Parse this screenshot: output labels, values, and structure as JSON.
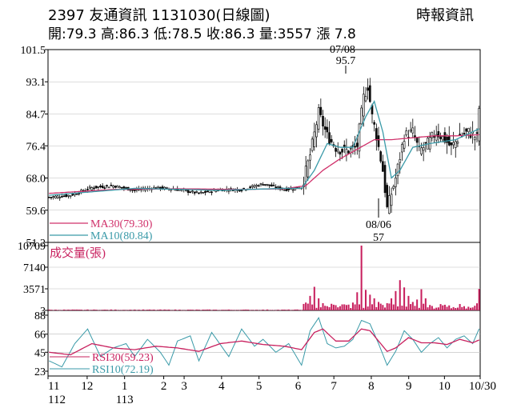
{
  "header": {
    "title": "2397  友通資訊 1131030(日線圖)",
    "quote": "開:79.3 高:86.3 低:78.5 收:86.3 量:3557 漲 7.8",
    "source": "時報資訊"
  },
  "chart_data": [
    {
      "type": "candlestick",
      "name": "price",
      "ylim": [
        51.2,
        101.5
      ],
      "yticks": [
        "101.5",
        "93.1",
        "84.7",
        "76.4",
        "68.0",
        "59.6",
        "51.2"
      ],
      "ytick_values": [
        101.5,
        93.1,
        84.7,
        76.4,
        68.0,
        59.6,
        51.2
      ],
      "annotations": [
        {
          "date": "07/08",
          "value": "95.7"
        },
        {
          "date": "08/06",
          "value": "57"
        }
      ],
      "legend": [
        {
          "label": "MA30(79.30)",
          "color": "#d0306a"
        },
        {
          "label": "MA10(80.84)",
          "color": "#3a9aa8"
        }
      ],
      "close_keypoints": [
        [
          0,
          63.0
        ],
        [
          10,
          63.5
        ],
        [
          20,
          65.5
        ],
        [
          30,
          66.0
        ],
        [
          40,
          64.8
        ],
        [
          50,
          65.5
        ],
        [
          60,
          65.0
        ],
        [
          70,
          64.0
        ],
        [
          80,
          65.0
        ],
        [
          90,
          65.0
        ],
        [
          100,
          66.5
        ],
        [
          110,
          65.0
        ],
        [
          118,
          65.5
        ],
        [
          122,
          74.0
        ],
        [
          126,
          85.0
        ],
        [
          130,
          79.0
        ],
        [
          134,
          76.0
        ],
        [
          138,
          75.0
        ],
        [
          142,
          75.5
        ],
        [
          144,
          76.5
        ],
        [
          147,
          89.0
        ],
        [
          149,
          92.0
        ],
        [
          151,
          84.0
        ],
        [
          153,
          79.0
        ],
        [
          156,
          70.0
        ],
        [
          158,
          60.0
        ],
        [
          162,
          68.0
        ],
        [
          166,
          79.0
        ],
        [
          170,
          80.0
        ],
        [
          173,
          75.0
        ],
        [
          177,
          77.0
        ],
        [
          181,
          80.0
        ],
        [
          185,
          78.0
        ],
        [
          188,
          76.0
        ],
        [
          192,
          79.0
        ],
        [
          196,
          80.0
        ],
        [
          200,
          78.5
        ],
        [
          201,
          86.3
        ]
      ],
      "ma10_keypoints": [
        [
          0,
          63.5
        ],
        [
          40,
          65.3
        ],
        [
          80,
          64.8
        ],
        [
          110,
          65.3
        ],
        [
          118,
          65.3
        ],
        [
          124,
          70.0
        ],
        [
          130,
          77.0
        ],
        [
          136,
          76.0
        ],
        [
          142,
          76.0
        ],
        [
          148,
          84.0
        ],
        [
          152,
          88.0
        ],
        [
          156,
          80.0
        ],
        [
          160,
          68.0
        ],
        [
          164,
          70.0
        ],
        [
          170,
          76.0
        ],
        [
          178,
          77.0
        ],
        [
          190,
          78.0
        ],
        [
          201,
          80.84
        ]
      ],
      "ma30_keypoints": [
        [
          0,
          64.0
        ],
        [
          30,
          65.0
        ],
        [
          60,
          65.2
        ],
        [
          90,
          65.0
        ],
        [
          110,
          65.2
        ],
        [
          120,
          66.0
        ],
        [
          128,
          70.0
        ],
        [
          136,
          73.0
        ],
        [
          144,
          75.5
        ],
        [
          152,
          78.0
        ],
        [
          160,
          78.0
        ],
        [
          170,
          78.5
        ],
        [
          180,
          79.0
        ],
        [
          190,
          79.0
        ],
        [
          201,
          79.3
        ]
      ]
    },
    {
      "type": "bar",
      "name": "volume",
      "title": "成交量(張)",
      "ylim": [
        3,
        10709
      ],
      "yticks": [
        "10709",
        "7140",
        "3571",
        "3"
      ],
      "ytick_values": [
        10709,
        7140,
        3571,
        3
      ],
      "last_value": 3557,
      "spikes": [
        [
          120,
          1300
        ],
        [
          122,
          2400
        ],
        [
          124,
          3900
        ],
        [
          126,
          2000
        ],
        [
          128,
          1200
        ],
        [
          130,
          700
        ],
        [
          136,
          700
        ],
        [
          138,
          1000
        ],
        [
          142,
          1300
        ],
        [
          144,
          3000
        ],
        [
          146,
          10709
        ],
        [
          148,
          3400
        ],
        [
          150,
          2600
        ],
        [
          152,
          2000
        ],
        [
          154,
          1400
        ],
        [
          156,
          900
        ],
        [
          158,
          1200
        ],
        [
          160,
          2000
        ],
        [
          162,
          3200
        ],
        [
          164,
          5000
        ],
        [
          166,
          3800
        ],
        [
          168,
          2400
        ],
        [
          170,
          1400
        ],
        [
          172,
          1800
        ],
        [
          174,
          3500
        ],
        [
          176,
          2000
        ],
        [
          178,
          900
        ],
        [
          182,
          500
        ],
        [
          186,
          600
        ],
        [
          190,
          400
        ],
        [
          194,
          700
        ],
        [
          198,
          500
        ],
        [
          201,
          3557
        ]
      ]
    },
    {
      "type": "line",
      "name": "rsi",
      "ylim": [
        23,
        88
      ],
      "yticks": [
        "88",
        "66",
        "45",
        "23"
      ],
      "ytick_values": [
        88,
        66,
        45,
        23
      ],
      "legend": [
        {
          "label": "RSI30(59.23)",
          "color": "#c8205e"
        },
        {
          "label": "RSI10(72.19)",
          "color": "#3a9aa8"
        }
      ],
      "rsi10_keypoints": [
        [
          0,
          35
        ],
        [
          6,
          28
        ],
        [
          12,
          55
        ],
        [
          18,
          72
        ],
        [
          24,
          40
        ],
        [
          30,
          50
        ],
        [
          36,
          55
        ],
        [
          40,
          40
        ],
        [
          46,
          60
        ],
        [
          52,
          45
        ],
        [
          56,
          30
        ],
        [
          60,
          58
        ],
        [
          66,
          64
        ],
        [
          70,
          35
        ],
        [
          76,
          68
        ],
        [
          84,
          40
        ],
        [
          90,
          72
        ],
        [
          96,
          52
        ],
        [
          100,
          60
        ],
        [
          106,
          45
        ],
        [
          112,
          55
        ],
        [
          118,
          30
        ],
        [
          122,
          70
        ],
        [
          126,
          85
        ],
        [
          130,
          55
        ],
        [
          134,
          50
        ],
        [
          138,
          52
        ],
        [
          142,
          60
        ],
        [
          146,
          82
        ],
        [
          150,
          78
        ],
        [
          154,
          55
        ],
        [
          158,
          30
        ],
        [
          162,
          46
        ],
        [
          166,
          70
        ],
        [
          170,
          60
        ],
        [
          174,
          45
        ],
        [
          178,
          55
        ],
        [
          182,
          62
        ],
        [
          186,
          50
        ],
        [
          190,
          60
        ],
        [
          194,
          64
        ],
        [
          198,
          55
        ],
        [
          201,
          72.19
        ]
      ],
      "rsi30_keypoints": [
        [
          0,
          45
        ],
        [
          10,
          42
        ],
        [
          20,
          55
        ],
        [
          30,
          50
        ],
        [
          40,
          48
        ],
        [
          50,
          52
        ],
        [
          60,
          50
        ],
        [
          70,
          46
        ],
        [
          80,
          55
        ],
        [
          90,
          58
        ],
        [
          100,
          54
        ],
        [
          110,
          52
        ],
        [
          118,
          48
        ],
        [
          124,
          68
        ],
        [
          128,
          72
        ],
        [
          134,
          58
        ],
        [
          140,
          58
        ],
        [
          146,
          72
        ],
        [
          150,
          70
        ],
        [
          154,
          58
        ],
        [
          158,
          46
        ],
        [
          162,
          50
        ],
        [
          168,
          62
        ],
        [
          174,
          56
        ],
        [
          180,
          56
        ],
        [
          186,
          54
        ],
        [
          192,
          60
        ],
        [
          198,
          56
        ],
        [
          201,
          59.23
        ]
      ]
    }
  ],
  "x_axis": {
    "n_bars": 202,
    "month_labels": [
      {
        "label": "11",
        "sub": "112",
        "index": 0
      },
      {
        "label": "12",
        "sub": "",
        "index": 23
      },
      {
        "label": "1",
        "sub": "113",
        "index": 45
      },
      {
        "label": "2",
        "sub": "",
        "index": 68
      },
      {
        "label": "3",
        "sub": "",
        "index": 80
      },
      {
        "label": "4",
        "sub": "",
        "index": 102
      },
      {
        "label": "5",
        "sub": "",
        "index": 124
      },
      {
        "label": "6",
        "sub": "",
        "index": 147
      },
      {
        "label": "7",
        "sub": "",
        "index": 168
      },
      {
        "label": "8",
        "sub": "",
        "index": 190
      },
      {
        "label": "9",
        "sub": "",
        "index": 212
      },
      {
        "label": "10",
        "sub": "",
        "index": 233
      },
      {
        "label": "10/30",
        "sub": "",
        "index": 254
      }
    ],
    "x_max_index": 254
  }
}
